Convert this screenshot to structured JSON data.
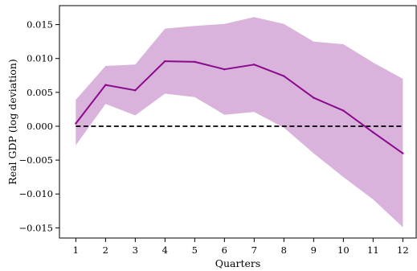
{
  "chart_data": {
    "type": "line",
    "title": "",
    "xlabel": "Quarters",
    "ylabel": "Real GDP (log deviation)",
    "x": [
      1,
      2,
      3,
      4,
      5,
      6,
      7,
      8,
      9,
      10,
      11,
      12
    ],
    "xlim": [
      0.45,
      12.45
    ],
    "ylim": [
      -0.0165,
      0.0178
    ],
    "x_ticks": [
      1,
      2,
      3,
      4,
      5,
      6,
      7,
      8,
      9,
      10,
      11,
      12
    ],
    "y_ticks": [
      -0.015,
      -0.01,
      -0.005,
      0.0,
      0.005,
      0.01,
      0.015
    ],
    "y_tick_labels": [
      "−0.015",
      "−0.010",
      "−0.005",
      "0.000",
      "0.005",
      "0.010",
      "0.015"
    ],
    "series": [
      {
        "kind": "line",
        "values": [
          0.0004,
          0.0061,
          0.0053,
          0.0096,
          0.0095,
          0.0084,
          0.0091,
          0.0074,
          0.0042,
          0.0023,
          -0.0009,
          -0.004
        ],
        "color": "#8b0a8b"
      },
      {
        "kind": "band",
        "lower": [
          -0.0028,
          0.0033,
          0.0016,
          0.0048,
          0.0043,
          0.0017,
          0.0021,
          -0.0002,
          -0.004,
          -0.0075,
          -0.0108,
          -0.0149
        ],
        "upper": [
          0.0039,
          0.0089,
          0.0091,
          0.0144,
          0.0148,
          0.0151,
          0.0161,
          0.0151,
          0.0125,
          0.0121,
          0.0094,
          0.007
        ],
        "color": "#d9b3dc"
      }
    ],
    "reference_line": {
      "y": 0.0,
      "style": "dashed",
      "color": "#000000"
    },
    "grid": false,
    "legend": "none"
  }
}
